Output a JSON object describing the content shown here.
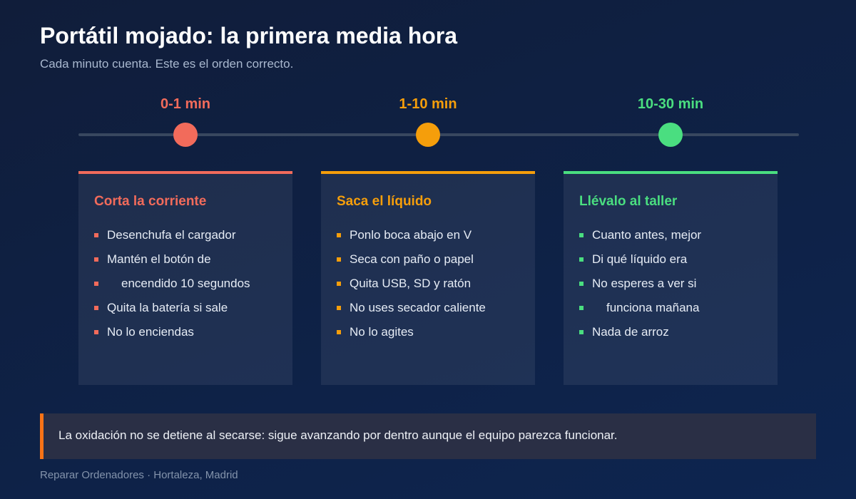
{
  "header": {
    "title": "Portátil mojado: la primera media hora",
    "subtitle": "Cada minuto cuenta. Este es el orden correcto."
  },
  "steps": [
    {
      "time": "0-1 min",
      "color": "#f26b5b",
      "title": "Corta la corriente",
      "items": [
        [
          "Desenchufa el cargador"
        ],
        [
          "Mantén el botón de",
          "encendido 10 segundos"
        ],
        [
          "Quita la batería si sale"
        ],
        [
          "No lo enciendas"
        ]
      ]
    },
    {
      "time": "1-10 min",
      "color": "#f59e0b",
      "title": "Saca el líquido",
      "items": [
        [
          "Ponlo boca abajo en V"
        ],
        [
          "Seca con paño o papel"
        ],
        [
          "Quita USB, SD y ratón"
        ],
        [
          "No uses secador caliente"
        ],
        [
          "No lo agites"
        ]
      ]
    },
    {
      "time": "10-30 min",
      "color": "#4ade80",
      "title": "Llévalo al taller",
      "items": [
        [
          "Cuanto antes, mejor"
        ],
        [
          "Di qué líquido era"
        ],
        [
          "No esperes a ver si",
          "funciona mañana"
        ],
        [
          "Nada de arroz"
        ]
      ]
    }
  ],
  "note": "La oxidación no se detiene al secarse: sigue avanzando por dentro aunque el equipo parezca funcionar.",
  "footer": "Reparar Ordenadores · Hortaleza, Madrid"
}
